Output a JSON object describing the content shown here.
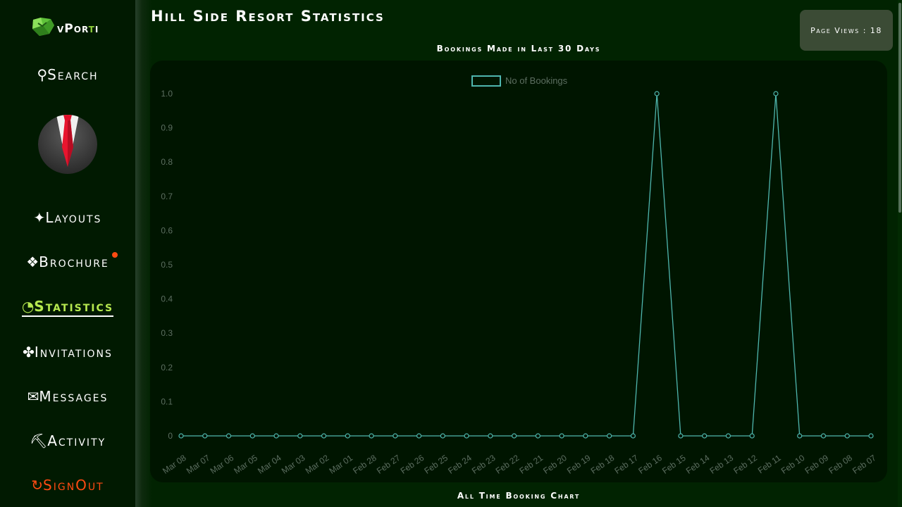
{
  "app": {
    "logo_text_a": "vPor",
    "logo_text_b": "t",
    "logo_text_c": "i"
  },
  "sidebar": {
    "items": [
      {
        "glyph": "⚲",
        "label": "Search"
      },
      {
        "glyph": "✦",
        "label": "Layouts"
      },
      {
        "glyph": "❖",
        "label": "Brochure"
      },
      {
        "glyph": "◔",
        "label": "Statistics"
      },
      {
        "glyph": "✤",
        "label": "Invitations"
      },
      {
        "glyph": "✉",
        "label": "Messages"
      },
      {
        "glyph": "⛏",
        "label": "Activity"
      },
      {
        "glyph": "↻",
        "label": "SignOut"
      }
    ]
  },
  "header": {
    "title": "Hill Side Resort Statistics",
    "page_views": "Page Views : 18"
  },
  "charts": {
    "bookings_title": "Bookings Made in Last 30 Days",
    "all_time_title": "All Time Booking Chart"
  },
  "colors": {
    "accent": "#b6e84f",
    "signout": "#ff4a12",
    "series": "#4fb6ae"
  },
  "chart_data": {
    "type": "line",
    "title": "Bookings Made in Last 30 Days",
    "categories": [
      "Mar 08",
      "Mar 07",
      "Mar 06",
      "Mar 05",
      "Mar 04",
      "Mar 03",
      "Mar 02",
      "Mar 01",
      "Feb 28",
      "Feb 27",
      "Feb 26",
      "Feb 25",
      "Feb 24",
      "Feb 23",
      "Feb 22",
      "Feb 21",
      "Feb 20",
      "Feb 19",
      "Feb 18",
      "Feb 17",
      "Feb 16",
      "Feb 15",
      "Feb 14",
      "Feb 13",
      "Feb 12",
      "Feb 11",
      "Feb 10",
      "Feb 09",
      "Feb 08",
      "Feb 07"
    ],
    "series": [
      {
        "name": "No of Bookings",
        "values": [
          0,
          0,
          0,
          0,
          0,
          0,
          0,
          0,
          0,
          0,
          0,
          0,
          0,
          0,
          0,
          0,
          0,
          0,
          0,
          0,
          1,
          0,
          0,
          0,
          0,
          1,
          0,
          0,
          0,
          0
        ]
      }
    ],
    "yticks": [
      "0",
      "0.1",
      "0.2",
      "0.3",
      "0.4",
      "0.5",
      "0.6",
      "0.7",
      "0.8",
      "0.9",
      "1.0"
    ],
    "ylim": [
      0,
      1
    ],
    "legend": "top-center",
    "grid": false
  }
}
